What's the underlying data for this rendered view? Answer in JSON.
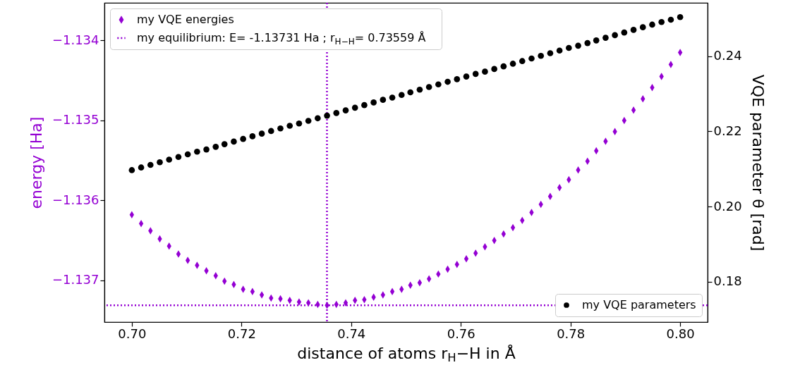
{
  "chart_data": {
    "type": "scatter",
    "xlabel": "distance of atoms r$_{H}$−H in Å",
    "ylabel": "energy [Ha]",
    "y2label": "VQE parameter θ [rad]",
    "x": [
      0.7,
      0.7017,
      0.7034,
      0.7051,
      0.7068,
      0.7085,
      0.7102,
      0.7119,
      0.7136,
      0.7153,
      0.7169,
      0.7186,
      0.7203,
      0.722,
      0.7237,
      0.7254,
      0.7271,
      0.7288,
      0.7305,
      0.7322,
      0.7339,
      0.7356,
      0.7373,
      0.739,
      0.7407,
      0.7424,
      0.7441,
      0.7458,
      0.7475,
      0.7492,
      0.7508,
      0.7525,
      0.7542,
      0.7559,
      0.7576,
      0.7593,
      0.761,
      0.7627,
      0.7644,
      0.7661,
      0.7678,
      0.7695,
      0.7712,
      0.7729,
      0.7746,
      0.7763,
      0.778,
      0.7797,
      0.7814,
      0.7831,
      0.7847,
      0.7864,
      0.7881,
      0.7898,
      0.7915,
      0.7932,
      0.7949,
      0.7966,
      0.7983,
      0.8
    ],
    "xlim": [
      0.695,
      0.805
    ],
    "xticks": [
      {
        "value": 0.7,
        "label": "0.70"
      },
      {
        "value": 0.72,
        "label": "0.72"
      },
      {
        "value": 0.74,
        "label": "0.74"
      },
      {
        "value": 0.76,
        "label": "0.76"
      },
      {
        "value": 0.78,
        "label": "0.78"
      },
      {
        "value": 0.8,
        "label": "0.80"
      }
    ],
    "ylim": [
      -1.13752,
      -1.13353
    ],
    "yticks": [
      {
        "value": -1.137,
        "label": "−1.137"
      },
      {
        "value": -1.136,
        "label": "−1.136"
      },
      {
        "value": -1.135,
        "label": "−1.135"
      },
      {
        "value": -1.134,
        "label": "−1.134"
      }
    ],
    "y2lim": [
      0.1693,
      0.2542
    ],
    "y2ticks": [
      {
        "value": 0.18,
        "label": "0.18"
      },
      {
        "value": 0.2,
        "label": "0.20"
      },
      {
        "value": 0.22,
        "label": "0.22"
      },
      {
        "value": 0.24,
        "label": "0.24"
      }
    ],
    "legend": "bottom right",
    "grid": false,
    "series": [
      {
        "name": "my VQE energies",
        "color": "#9400d3",
        "marker": "diamond",
        "values": [
          -1.13618,
          -1.13629,
          -1.13638,
          -1.13648,
          -1.13657,
          -1.13667,
          -1.13675,
          -1.13681,
          -1.13688,
          -1.13694,
          -1.13701,
          -1.13705,
          -1.13711,
          -1.13714,
          -1.13718,
          -1.13722,
          -1.13723,
          -1.13725,
          -1.13727,
          -1.13728,
          -1.1373,
          -1.13731,
          -1.1373,
          -1.13728,
          -1.13725,
          -1.13724,
          -1.13721,
          -1.13718,
          -1.13714,
          -1.13711,
          -1.13706,
          -1.13703,
          -1.13698,
          -1.13692,
          -1.13686,
          -1.1368,
          -1.13673,
          -1.13666,
          -1.13658,
          -1.1365,
          -1.13642,
          -1.13634,
          -1.13625,
          -1.13615,
          -1.13605,
          -1.13595,
          -1.13584,
          -1.13574,
          -1.13562,
          -1.13551,
          -1.13538,
          -1.13526,
          -1.13514,
          -1.135,
          -1.13487,
          -1.13473,
          -1.13459,
          -1.13445,
          -1.1343,
          -1.13415
        ]
      },
      {
        "name": "my VQE parameters",
        "color": "#000000",
        "marker": "circle",
        "axis": "y2",
        "values": [
          0.2097,
          0.2104,
          0.2111,
          0.2118,
          0.2125,
          0.2132,
          0.2139,
          0.2146,
          0.2152,
          0.2159,
          0.2166,
          0.2173,
          0.218,
          0.2187,
          0.2194,
          0.2201,
          0.2208,
          0.2215,
          0.2221,
          0.2228,
          0.2235,
          0.2242,
          0.2249,
          0.2256,
          0.2263,
          0.227,
          0.2277,
          0.2284,
          0.229,
          0.2297,
          0.2304,
          0.2311,
          0.2318,
          0.2325,
          0.2332,
          0.2339,
          0.2346,
          0.2353,
          0.2359,
          0.2366,
          0.2373,
          0.238,
          0.2387,
          0.2394,
          0.2401,
          0.2408,
          0.2415,
          0.2422,
          0.2428,
          0.2435,
          0.2442,
          0.2449,
          0.2456,
          0.2463,
          0.247,
          0.2477,
          0.2484,
          0.2491,
          0.2497,
          0.2504
        ]
      }
    ],
    "ref_lines": [
      {
        "axis": "y",
        "value": -1.13731,
        "label": "my equilibrium: E= -1.13731 Ha ; r$_{H−H}$=  0.73559 Å",
        "color": "#9400d3",
        "line_style": "dotted"
      },
      {
        "axis": "x",
        "value": 0.73559,
        "label": null,
        "color": "#9400d3",
        "line_style": "dotted"
      }
    ]
  }
}
